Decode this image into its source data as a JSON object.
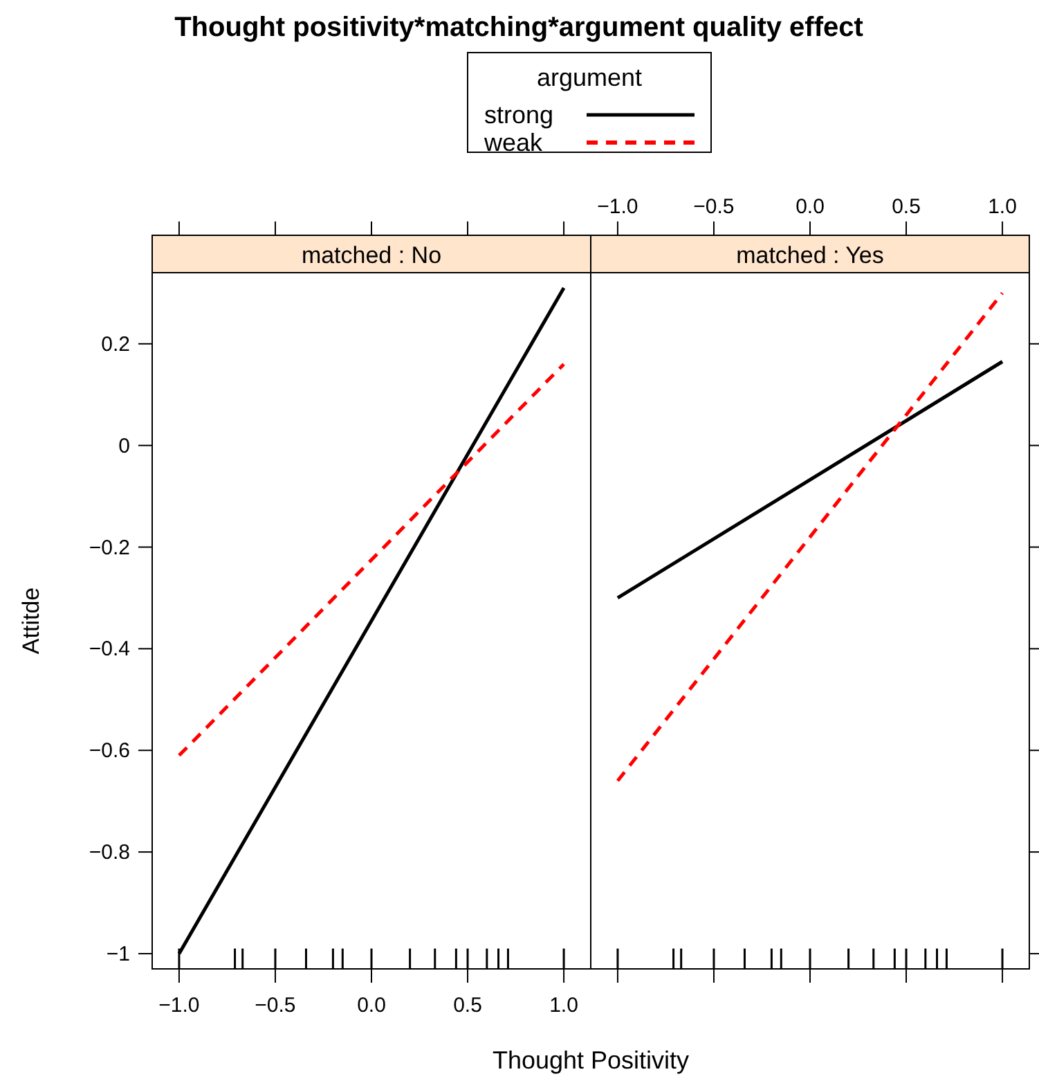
{
  "chart_data": [
    {
      "type": "line",
      "title": "Thought positivity*matching*argument quality effect",
      "subtitle": "matched : No",
      "xlabel": "Thought Positivity",
      "ylabel": "Attitde",
      "legend": "top",
      "legend_title": "argument",
      "xlim": [
        -1.14,
        1.14
      ],
      "ylim": [
        -1.03,
        0.34
      ],
      "xticks": [
        {
          "value": -1,
          "label": "−1.0"
        },
        {
          "value": -0.5,
          "label": "−0.5"
        },
        {
          "value": 0,
          "label": "0.0"
        },
        {
          "value": 0.5,
          "label": "0.5"
        },
        {
          "value": 1,
          "label": "1.0"
        }
      ],
      "yticks": [
        {
          "value": -1,
          "label": "−1"
        },
        {
          "value": -0.8,
          "label": "−0.8"
        },
        {
          "value": -0.6,
          "label": "−0.6"
        },
        {
          "value": -0.4,
          "label": "−0.4"
        },
        {
          "value": -0.2,
          "label": "−0.2"
        },
        {
          "value": 0,
          "label": "0"
        },
        {
          "value": 0.2,
          "label": "0.2"
        }
      ],
      "series": [
        {
          "name": "strong",
          "color": "#000000",
          "line_style": "solid",
          "x": [
            -1,
            1
          ],
          "values": [
            -1.0,
            0.31
          ]
        },
        {
          "name": "weak",
          "color": "#ff0000",
          "line_style": "dashed",
          "x": [
            -1,
            1
          ],
          "values": [
            -0.61,
            0.16
          ]
        },
        {
          "type": "bar",
          "color": "#000000",
          "x": [
            -1,
            -0.71,
            -0.67,
            -0.5,
            -0.34,
            -0.2,
            -0.15,
            0,
            0.2,
            0.33,
            0.44,
            0.5,
            0.6,
            0.66,
            0.71,
            1
          ],
          "base": [
            -1.03,
            -1.03,
            -1.03,
            -1.03,
            -1.03,
            -1.03,
            -1.03,
            -1.03,
            -1.03,
            -1.03,
            -1.03,
            -1.03,
            -1.03,
            -1.03,
            -1.03,
            -1.03
          ],
          "values": [
            0.04,
            0.04,
            0.04,
            0.04,
            0.04,
            0.04,
            0.04,
            0.04,
            0.04,
            0.04,
            0.04,
            0.04,
            0.04,
            0.04,
            0.04,
            0.04
          ]
        }
      ]
    },
    {
      "type": "line",
      "subtitle": "matched : Yes",
      "tick_labels": "x",
      "xlim": [
        -1.14,
        1.14
      ],
      "ylim": [
        -1.03,
        0.34
      ],
      "xticks": [
        {
          "value": -1,
          "label": "−1.0"
        },
        {
          "value": -0.5,
          "label": "−0.5"
        },
        {
          "value": 0,
          "label": "0.0"
        },
        {
          "value": 0.5,
          "label": "0.5"
        },
        {
          "value": 1,
          "label": "1.0"
        }
      ],
      "yticks": [
        {
          "value": -1,
          "label": null
        },
        {
          "value": -0.8,
          "label": null
        },
        {
          "value": -0.6,
          "label": null
        },
        {
          "value": -0.4,
          "label": null
        },
        {
          "value": -0.2,
          "label": null
        },
        {
          "value": 0,
          "label": null
        },
        {
          "value": 0.2,
          "label": null
        }
      ],
      "series": [
        {
          "color": "#000000",
          "line_style": "solid",
          "x": [
            -1,
            1
          ],
          "values": [
            -0.3,
            0.165
          ]
        },
        {
          "color": "#ff0000",
          "line_style": "dashed",
          "x": [
            -1,
            1
          ],
          "values": [
            -0.66,
            0.3
          ]
        },
        {
          "type": "bar",
          "color": "#000000",
          "x": [
            -1,
            -0.71,
            -0.67,
            -0.5,
            -0.34,
            -0.2,
            -0.15,
            0,
            0.2,
            0.33,
            0.44,
            0.5,
            0.6,
            0.66,
            0.71,
            1
          ],
          "base": [
            -1.03,
            -1.03,
            -1.03,
            -1.03,
            -1.03,
            -1.03,
            -1.03,
            -1.03,
            -1.03,
            -1.03,
            -1.03,
            -1.03,
            -1.03,
            -1.03,
            -1.03,
            -1.03
          ],
          "values": [
            0.04,
            0.04,
            0.04,
            0.04,
            0.04,
            0.04,
            0.04,
            0.04,
            0.04,
            0.04,
            0.04,
            0.04,
            0.04,
            0.04,
            0.04,
            0.04
          ]
        }
      ]
    }
  ]
}
